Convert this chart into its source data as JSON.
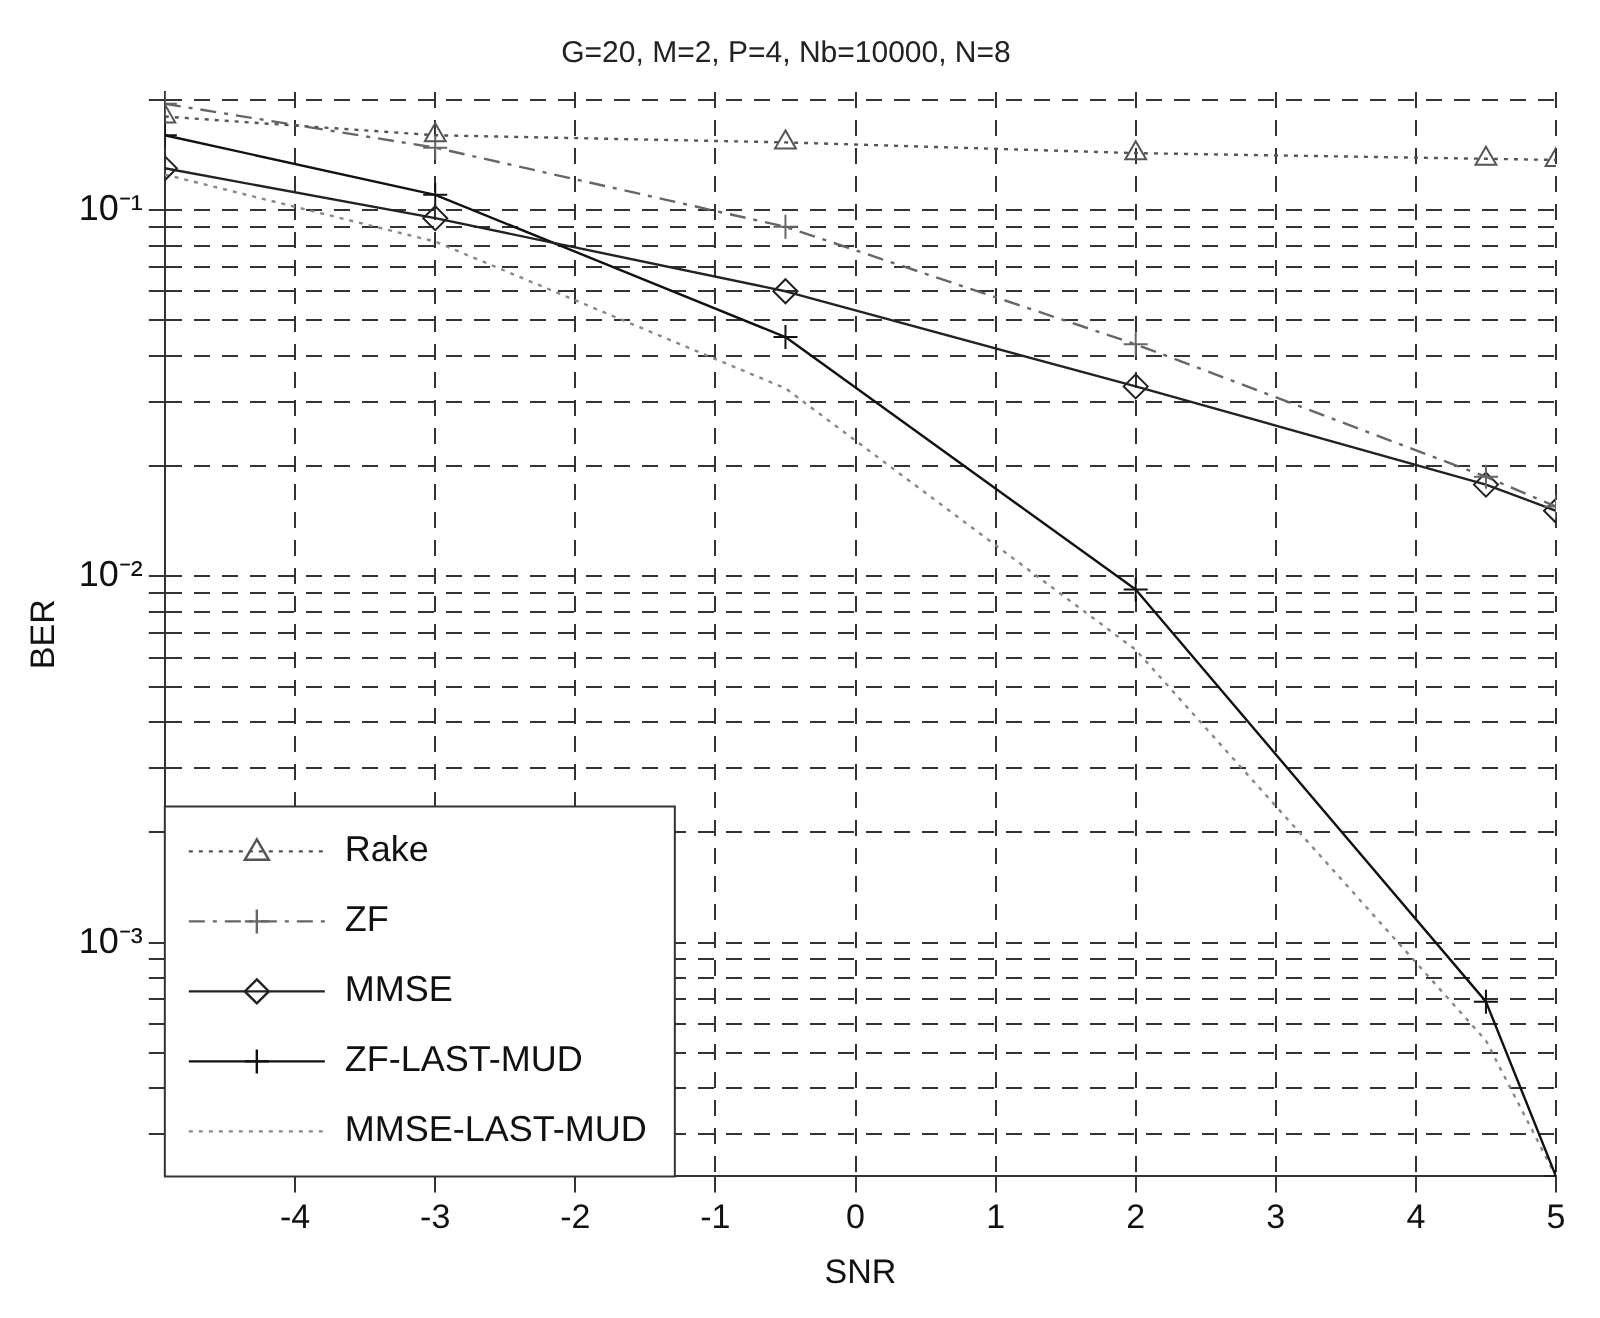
{
  "chart_data": {
    "type": "line",
    "title": "G=20, M=2, P=4, Nb=10000, N=8",
    "xlabel": "SNR",
    "ylabel": "BER",
    "log": "y",
    "grid": true,
    "legend": "bottom left",
    "xlim": [
      -4.93,
      5
    ],
    "xticks": [
      -4,
      -3,
      -2,
      -1,
      0,
      1,
      2,
      3,
      4,
      5
    ],
    "ylim": [
      0.00023,
      0.21
    ],
    "yticks": [
      {
        "value": 0.0003,
        "label": null
      },
      {
        "value": 0.0004,
        "label": null
      },
      {
        "value": 0.0005,
        "label": null
      },
      {
        "value": 0.0006,
        "label": null
      },
      {
        "value": 0.0007,
        "label": null
      },
      {
        "value": 0.0008,
        "label": null
      },
      {
        "value": 0.0009,
        "label": null
      },
      {
        "value": 0.001,
        "label": "10⁻³"
      },
      {
        "value": 0.002,
        "label": null
      },
      {
        "value": 0.003,
        "label": null
      },
      {
        "value": 0.004,
        "label": null
      },
      {
        "value": 0.005,
        "label": null
      },
      {
        "value": 0.006,
        "label": null
      },
      {
        "value": 0.007,
        "label": null
      },
      {
        "value": 0.008,
        "label": null
      },
      {
        "value": 0.009,
        "label": null
      },
      {
        "value": 0.01,
        "label": "10⁻²"
      },
      {
        "value": 0.02,
        "label": null
      },
      {
        "value": 0.03,
        "label": null
      },
      {
        "value": 0.04,
        "label": null
      },
      {
        "value": 0.05,
        "label": null
      },
      {
        "value": 0.06,
        "label": null
      },
      {
        "value": 0.07,
        "label": null
      },
      {
        "value": 0.08,
        "label": null
      },
      {
        "value": 0.09,
        "label": null
      },
      {
        "value": 0.1,
        "label": "10⁻¹"
      },
      {
        "value": 0.2,
        "label": null
      }
    ],
    "x": [
      -4.93,
      -3,
      -0.5,
      2,
      4.5,
      5
    ],
    "series": [
      {
        "name": "Rake",
        "color": "#555555",
        "marker": "triangle",
        "line_style": "dotted",
        "values": [
          0.18,
          0.16,
          0.153,
          0.143,
          0.138,
          0.137
        ]
      },
      {
        "name": "ZF",
        "color": "#666666",
        "marker": "cross",
        "line_style": "dashed",
        "values": [
          0.195,
          0.148,
          0.09,
          0.043,
          0.0187,
          0.0155
        ]
      },
      {
        "name": "MMSE",
        "color": "#222222",
        "marker": "diamond",
        "line_style": "solid",
        "values": [
          0.13,
          0.095,
          0.06,
          0.033,
          0.0178,
          0.0151
        ]
      },
      {
        "name": "ZF-LAST-MUD",
        "color": "#111111",
        "marker": "cross",
        "line_style": "solid",
        "values": [
          0.16,
          0.11,
          0.045,
          0.0092,
          0.00069,
          0.00023
        ]
      },
      {
        "name": "MMSE-LAST-MUD",
        "color": "#888888",
        "marker": "none",
        "line_style": "dotted",
        "values": [
          0.125,
          0.082,
          0.0326,
          0.0063,
          0.00054,
          0.00023
        ]
      }
    ]
  }
}
